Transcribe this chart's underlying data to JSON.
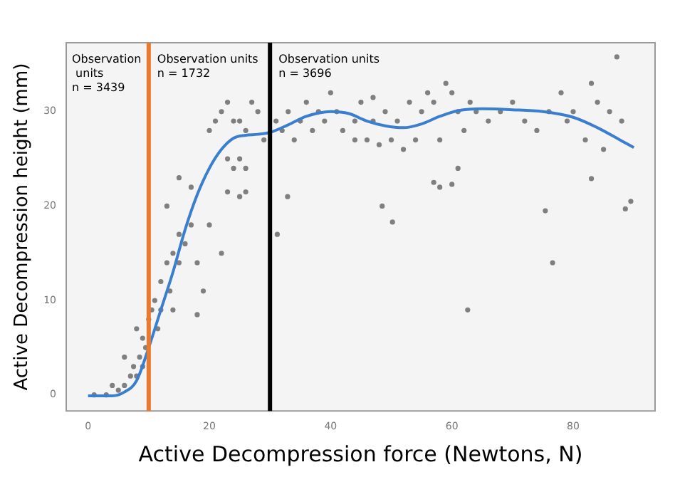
{
  "chart_data": {
    "type": "scatter",
    "xlabel": "Active Decompression force (Newtons, N)",
    "ylabel": "Active Decompression height (mm)",
    "xlim": [
      -3.6,
      93.5
    ],
    "ylim": [
      -1.7,
      37.3
    ],
    "xticks": [
      0,
      20,
      40,
      60,
      80
    ],
    "yticks": [
      0,
      10,
      20,
      30
    ],
    "grid": false,
    "legend": false,
    "marker": "circle",
    "series": [
      {
        "color": "#7f7f7f",
        "x": [
          1,
          3,
          5,
          6,
          7,
          7.5,
          8,
          8.5,
          9,
          9,
          9.5,
          8,
          6,
          4,
          10,
          10.5,
          11,
          11.5,
          12,
          12,
          13,
          13.5,
          14,
          15,
          15,
          16,
          17,
          18,
          19,
          17,
          20,
          21,
          22,
          23,
          24,
          25,
          26,
          27,
          28,
          29,
          23,
          24,
          25,
          26,
          23,
          25,
          26,
          20,
          22,
          15,
          14,
          18,
          13,
          31,
          32,
          33,
          34,
          35,
          36,
          37,
          38,
          39,
          40,
          41,
          42,
          44,
          45,
          46,
          47,
          48,
          49,
          50,
          51,
          52,
          53,
          54,
          55,
          56,
          57,
          58,
          59,
          60,
          61,
          62,
          63,
          64,
          66,
          68,
          70,
          72,
          74,
          76,
          78,
          79,
          80,
          82,
          83,
          84,
          85,
          86,
          83,
          88.6,
          89.5,
          88,
          87.2,
          57,
          58,
          60,
          61,
          48.5,
          50.2,
          76.6,
          75.4,
          62.6,
          31.2,
          32.9,
          44,
          47
        ],
        "values": [
          0,
          0,
          0.5,
          1,
          2,
          3,
          2,
          4,
          3,
          6,
          5,
          7,
          4,
          1,
          8,
          9,
          10,
          7,
          12,
          9,
          14,
          11,
          15,
          17,
          14,
          16,
          18,
          14,
          11,
          22,
          28,
          29,
          30,
          31,
          29,
          29,
          28,
          31,
          30,
          27,
          25,
          24,
          25,
          24,
          21.5,
          21,
          21.5,
          18,
          15,
          23,
          9,
          8.5,
          20,
          29,
          28,
          30,
          27,
          29,
          31,
          28,
          30,
          29,
          32,
          30,
          28,
          29,
          31,
          27,
          29,
          26.5,
          30,
          27,
          29,
          26,
          31,
          27,
          30,
          32,
          31,
          27,
          33,
          32,
          30,
          28,
          31,
          30,
          29,
          30,
          31,
          29,
          28,
          30,
          32,
          29,
          30,
          27,
          33,
          31,
          26,
          30,
          22.9,
          19.7,
          20.5,
          29,
          35.8,
          22.5,
          22,
          22.3,
          24,
          20,
          18.3,
          14,
          19.5,
          9,
          17,
          21,
          27,
          31.5
        ]
      },
      {
        "type": "line",
        "color": "#3a7fcf",
        "marker": "none",
        "x": [
          0,
          4,
          6,
          8,
          10,
          12,
          14,
          16,
          18,
          20,
          22,
          24,
          26,
          28,
          30,
          33,
          36,
          40,
          43,
          46,
          49,
          52,
          55,
          58,
          61,
          65,
          70,
          75,
          80,
          84,
          88,
          90
        ],
        "values": [
          -0.1,
          -0.1,
          0.3,
          1.5,
          5,
          9,
          13,
          17.5,
          21.2,
          24,
          26,
          27.2,
          27.5,
          27.6,
          27.8,
          28.6,
          29.5,
          30,
          29.8,
          29,
          28.5,
          28.3,
          28.7,
          29.5,
          30.1,
          30.3,
          30.2,
          30,
          29.4,
          28.3,
          26.9,
          26.2
        ]
      }
    ],
    "ref_lines": [
      {
        "axis": "x",
        "value": 10,
        "color": "#e8792f"
      },
      {
        "axis": "x",
        "value": 30,
        "color": "#000000"
      }
    ],
    "annotations": [
      "Observation\n units\nn = 3439",
      "Observation units\nn = 1732",
      "Observation units\nn = 3696"
    ]
  }
}
